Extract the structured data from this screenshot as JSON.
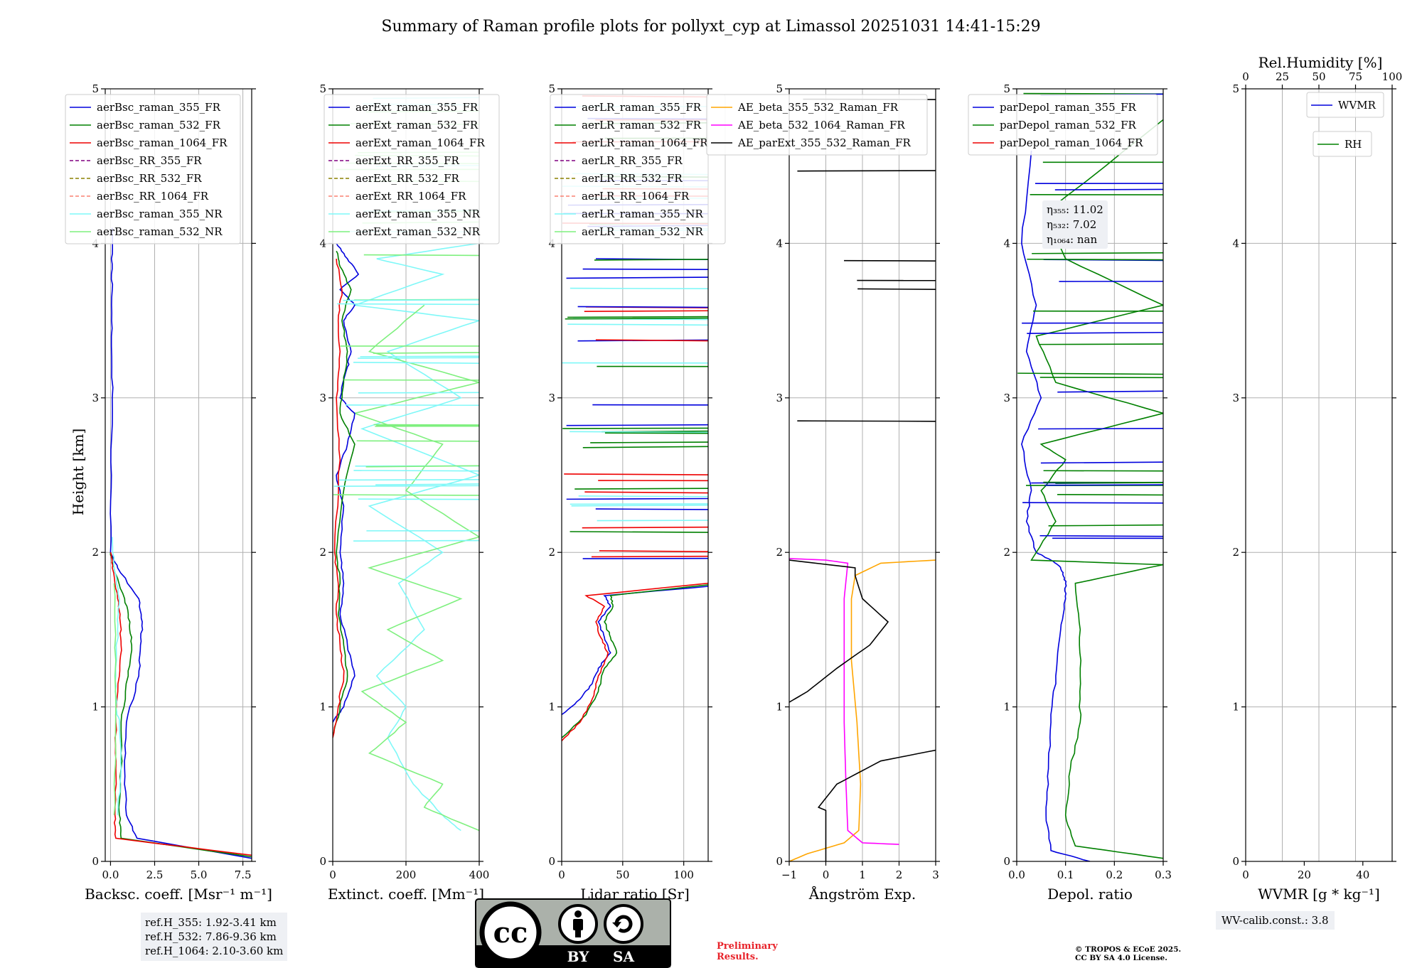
{
  "chart_data": {
    "title": "Summary of Raman profile plots for pollyxt_cyp at Limassol 20251031 14:41-15:29",
    "ylabel": "Height [km]",
    "ylim": [
      0,
      5
    ],
    "yticks": [
      "0",
      "1",
      "2",
      "3",
      "4",
      "5"
    ],
    "panels": [
      {
        "id": "bsc",
        "type": "line",
        "xlabel": "Backsc. coeff. [Msr⁻¹ m⁻¹]",
        "xlim": [
          -0.3,
          8
        ],
        "xticks": [
          0,
          2.5,
          5,
          7.5
        ],
        "xticklabels": [
          "0.0",
          "2.5",
          "5.0",
          "7.5"
        ],
        "legend": [
          "aerBsc_raman_355_FR",
          "aerBsc_raman_532_FR",
          "aerBsc_raman_1064_FR",
          "aerBsc_RR_355_FR",
          "aerBsc_RR_532_FR",
          "aerBsc_RR_1064_FR",
          "aerBsc_raman_355_NR",
          "aerBsc_raman_532_NR"
        ],
        "series": [
          {
            "name": "aerBsc_raman_355_FR",
            "color": "#0000dd",
            "x": [
              8,
              1.5,
              0.9,
              0.8,
              0.9,
              1.6,
              1.7,
              1.8,
              1.6,
              0.4,
              0.0,
              0.05,
              0.1,
              0.05,
              0.1,
              0.05,
              0.1
            ],
            "y": [
              0.02,
              0.15,
              0.3,
              0.6,
              0.9,
              1.2,
              1.4,
              1.55,
              1.7,
              1.9,
              2.0,
              2.5,
              3.0,
              3.4,
              3.7,
              3.9,
              4.1
            ]
          },
          {
            "name": "aerBsc_raman_532_FR",
            "color": "#008000",
            "x": [
              8,
              0.6,
              0.5,
              0.6,
              0.6,
              1.0,
              1.2,
              1.1,
              0.8,
              0.2,
              0.0
            ],
            "y": [
              0.03,
              0.15,
              0.3,
              0.6,
              0.9,
              1.2,
              1.4,
              1.55,
              1.7,
              1.9,
              2.0
            ]
          },
          {
            "name": "aerBsc_raman_1064_FR",
            "color": "#ee0000",
            "x": [
              8,
              0.3,
              0.25,
              0.3,
              0.3,
              0.5,
              0.6,
              0.55,
              0.4,
              0.1,
              0.0
            ],
            "y": [
              0.04,
              0.15,
              0.3,
              0.6,
              0.9,
              1.2,
              1.4,
              1.55,
              1.7,
              1.9,
              2.0
            ]
          },
          {
            "name": "aerBsc_raman_355_NR",
            "color": "#7ff8f8",
            "x": [
              0.4,
              0.6,
              0.5,
              0.3,
              0.3,
              0.4,
              0.5,
              0.2,
              0.1
            ],
            "y": [
              0.3,
              0.6,
              0.9,
              1.0,
              1.2,
              1.5,
              1.7,
              1.9,
              2.1
            ]
          },
          {
            "name": "aerBsc_raman_532_NR",
            "color": "#7ff07f",
            "x": [
              0.2,
              0.3,
              0.3,
              0.2
            ],
            "y": [
              0.3,
              0.7,
              1.3,
              1.8
            ]
          }
        ]
      },
      {
        "id": "ext",
        "type": "line",
        "xlabel": "Extinct. coeff. [Mm⁻¹]",
        "xlim": [
          0,
          400
        ],
        "xticks": [
          0,
          200,
          400
        ],
        "xticklabels": [
          "0",
          "200",
          "400"
        ],
        "legend": [
          "aerExt_raman_355_FR",
          "aerExt_raman_532_FR",
          "aerExt_raman_1064_FR",
          "aerExt_RR_355_FR",
          "aerExt_RR_532_FR",
          "aerExt_RR_1064_FR",
          "aerExt_raman_355_NR",
          "aerExt_raman_532_NR"
        ],
        "series": [
          {
            "name": "aerExt_raman_355_NR",
            "color": "#7ff8f8",
            "x": [
              350,
              300,
              220,
              150,
              200,
              120,
              250,
              180,
              300,
              100,
              400,
              80,
              350,
              150,
              400,
              60,
              300,
              120,
              400
            ],
            "y": [
              0.2,
              0.3,
              0.5,
              0.8,
              1.0,
              1.2,
              1.5,
              1.8,
              2.0,
              2.3,
              2.5,
              2.8,
              3.0,
              3.3,
              3.5,
              3.6,
              3.8,
              3.9,
              4.0
            ]
          },
          {
            "name": "aerExt_raman_532_NR",
            "color": "#7ff07f",
            "x": [
              400,
              250,
              300,
              100,
              200,
              80,
              300,
              150,
              350,
              100,
              400,
              200,
              300,
              60,
              400,
              100,
              250
            ],
            "y": [
              0.2,
              0.35,
              0.5,
              0.7,
              0.9,
              1.1,
              1.3,
              1.5,
              1.7,
              1.9,
              2.1,
              2.4,
              2.7,
              2.9,
              3.1,
              3.3,
              3.6
            ]
          },
          {
            "name": "aerExt_raman_355_FR",
            "color": "#0000dd",
            "x": [
              0,
              30,
              60,
              40,
              20,
              30,
              20,
              30,
              10,
              40,
              60,
              20,
              40,
              50,
              30,
              60,
              20,
              70,
              40,
              10
            ],
            "y": [
              0.9,
              1.0,
              1.2,
              1.4,
              1.6,
              1.8,
              2.0,
              2.3,
              2.5,
              2.7,
              2.9,
              3.0,
              3.2,
              3.3,
              3.5,
              3.6,
              3.7,
              3.8,
              3.9,
              4.0
            ]
          },
          {
            "name": "aerExt_raman_532_FR",
            "color": "#008000",
            "x": [
              0,
              20,
              40,
              30,
              15,
              20,
              10,
              30,
              60,
              20,
              30,
              40,
              25,
              50,
              20,
              10
            ],
            "y": [
              0.8,
              1.0,
              1.2,
              1.4,
              1.6,
              1.8,
              2.0,
              2.4,
              2.7,
              2.9,
              3.1,
              3.3,
              3.5,
              3.7,
              3.85,
              3.95
            ]
          },
          {
            "name": "aerExt_raman_1064_FR",
            "color": "#ee0000",
            "x": [
              0,
              15,
              30,
              20,
              10,
              15,
              5,
              20,
              10,
              20,
              15,
              25,
              10
            ],
            "y": [
              0.8,
              1.0,
              1.2,
              1.4,
              1.6,
              1.8,
              2.0,
              2.6,
              3.0,
              3.3,
              3.5,
              3.7,
              3.9
            ]
          }
        ]
      },
      {
        "id": "lr",
        "type": "line",
        "xlabel": "Lidar ratio [Sr]",
        "xlim": [
          0,
          120
        ],
        "xticks": [
          0,
          50,
          100
        ],
        "xticklabels": [
          "0",
          "50",
          "100"
        ],
        "legend": [
          "aerLR_raman_355_FR",
          "aerLR_raman_532_FR",
          "aerLR_raman_1064_FR",
          "aerLR_RR_355_FR",
          "aerLR_RR_532_FR",
          "aerLR_RR_1064_FR",
          "aerLR_raman_355_NR",
          "aerLR_raman_532_NR"
        ],
        "series": [
          {
            "name": "aerLR_raman_355_FR",
            "color": "#0000dd",
            "x": [
              0,
              15,
              25,
              30,
              40,
              35,
              30,
              40,
              35,
              120
            ],
            "y": [
              0.95,
              1.05,
              1.15,
              1.25,
              1.35,
              1.45,
              1.55,
              1.65,
              1.72,
              1.78
            ]
          },
          {
            "name": "aerLR_raman_532_FR",
            "color": "#008000",
            "x": [
              0,
              20,
              30,
              35,
              45,
              40,
              35,
              42,
              40,
              120
            ],
            "y": [
              0.8,
              0.95,
              1.1,
              1.25,
              1.35,
              1.45,
              1.55,
              1.65,
              1.72,
              1.79
            ]
          },
          {
            "name": "aerLR_raman_1064_FR",
            "color": "#ee0000",
            "x": [
              0,
              15,
              25,
              30,
              38,
              32,
              28,
              35,
              20,
              120
            ],
            "y": [
              0.78,
              0.9,
              1.05,
              1.2,
              1.35,
              1.45,
              1.55,
              1.65,
              1.72,
              1.8
            ]
          }
        ]
      },
      {
        "id": "ae",
        "type": "line",
        "xlabel": "Ångström Exp.",
        "xlim": [
          -1,
          3
        ],
        "xticks": [
          -1,
          0,
          1,
          2,
          3
        ],
        "xticklabels": [
          "−1",
          "0",
          "1",
          "2",
          "3"
        ],
        "legend": [
          "AE_beta_355_532_Raman_FR",
          "AE_beta_532_1064_Raman_FR",
          "AE_parExt_355_532_Raman_FR"
        ],
        "series": [
          {
            "name": "AE_beta_355_532_Raman_FR",
            "color": "#ffa500",
            "x": [
              -1,
              -0.5,
              0.5,
              0.9,
              0.95,
              0.85,
              0.7,
              0.7,
              0.8,
              1.5,
              3
            ],
            "y": [
              0.0,
              0.05,
              0.12,
              0.2,
              0.5,
              0.9,
              1.3,
              1.7,
              1.85,
              1.93,
              1.95
            ]
          },
          {
            "name": "AE_beta_532_1064_Raman_FR",
            "color": "#ff00ff",
            "x": [
              2.0,
              1.0,
              0.6,
              0.55,
              0.5,
              0.5,
              0.5,
              0.6,
              0.0,
              -1
            ],
            "y": [
              0.11,
              0.12,
              0.2,
              0.5,
              0.9,
              1.3,
              1.7,
              1.93,
              1.95,
              1.96
            ]
          },
          {
            "name": "AE_parExt_355_532_Raman_FR",
            "color": "#000000",
            "x": [
              0,
              0,
              -0.2,
              0.3,
              1.5,
              3
            ],
            "y": [
              0.0,
              0.33,
              0.35,
              0.5,
              0.65,
              0.72
            ]
          },
          {
            "name": "AE_parExt_355_532_Raman_FR",
            "color": "#000000",
            "x": [
              -1,
              -0.5,
              0.3,
              1.2,
              1.7,
              1.0,
              0.8,
              0.8,
              -1
            ],
            "y": [
              1.03,
              1.1,
              1.25,
              1.4,
              1.55,
              1.7,
              1.85,
              1.9,
              1.95
            ]
          }
        ]
      },
      {
        "id": "depol",
        "type": "line",
        "xlabel": "Depol. ratio",
        "xlim": [
          0,
          0.3
        ],
        "xticks": [
          0,
          0.1,
          0.2,
          0.3
        ],
        "xticklabels": [
          "0.0",
          "0.1",
          "0.2",
          "0.3"
        ],
        "legend": [
          "parDepol_raman_355_FR",
          "parDepol_raman_532_FR",
          "parDepol_raman_1064_FR"
        ],
        "annotations": [
          "η₃₅₅: 11.02",
          "η₅₃₂: 7.02",
          "η₁₀₆₄: nan"
        ],
        "series": [
          {
            "name": "parDepol_raman_355_FR",
            "color": "#0000dd",
            "x": [
              0.15,
              0.07,
              0.06,
              0.065,
              0.07,
              0.08,
              0.09,
              0.1,
              0.1,
              0.095,
              0.09,
              0.07,
              0.04,
              0.02,
              0.03,
              0.01,
              0.05,
              0.02,
              0.04,
              0.01,
              0.03
            ],
            "y": [
              0.0,
              0.07,
              0.3,
              0.6,
              0.9,
              1.2,
              1.5,
              1.7,
              1.8,
              1.87,
              1.9,
              1.95,
              2.0,
              2.2,
              2.4,
              2.7,
              3.0,
              3.3,
              3.6,
              4.0,
              4.6
            ]
          },
          {
            "name": "parDepol_raman_532_FR",
            "color": "#008000",
            "x": [
              0.3,
              0.12,
              0.1,
              0.11,
              0.13,
              0.13,
              0.13,
              0.12,
              0.3,
              0.03,
              0.08,
              0.05,
              0.1,
              0.05,
              0.3,
              0.08,
              0.04,
              0.3,
              0.1,
              0.06,
              0.3
            ],
            "y": [
              0.02,
              0.1,
              0.3,
              0.6,
              0.9,
              1.2,
              1.5,
              1.8,
              1.92,
              1.95,
              2.2,
              2.4,
              2.6,
              2.7,
              2.9,
              3.1,
              3.4,
              3.6,
              3.9,
              4.2,
              4.8
            ]
          }
        ]
      },
      {
        "id": "wv",
        "type": "line",
        "xlabel": "WVMR [g * kg⁻¹]",
        "xlim": [
          0,
          50
        ],
        "xticks": [
          0,
          20,
          40
        ],
        "xticklabels": [
          "0",
          "20",
          "40"
        ],
        "top_xlabel": "Rel.Humidity [%]",
        "top_xticks": [
          0,
          25,
          50,
          75,
          100
        ],
        "top_xticklabels": [
          "0",
          "25",
          "50",
          "75",
          "100"
        ],
        "legend": [
          "WVMR",
          "RH"
        ],
        "series": []
      }
    ]
  },
  "reference_heights": [
    "ref.H_355: 1.92-3.41 km",
    "ref.H_532: 7.86-9.36 km",
    "ref.H_1064: 2.10-3.60 km"
  ],
  "wv_calib": "WV-calib.const.: 3.8",
  "preliminary": [
    "Preliminary",
    "Results."
  ],
  "copyright": [
    "© TROPOS & ECoE 2025.",
    "CC BY SA 4.0 License."
  ],
  "license_badge": {
    "cc": "cc",
    "by": "BY",
    "sa": "SA"
  },
  "colors": {
    "blue": "#0000dd",
    "green": "#008000",
    "red": "#ee0000",
    "purple_dash": "#800080",
    "olive_dash": "#8b8000",
    "salmon_dash": "#fa8072",
    "cyan": "#7ff8f8",
    "lightgreen": "#7ff07f",
    "orange": "#ffa500",
    "magenta": "#ff00ff",
    "black": "#000000"
  }
}
